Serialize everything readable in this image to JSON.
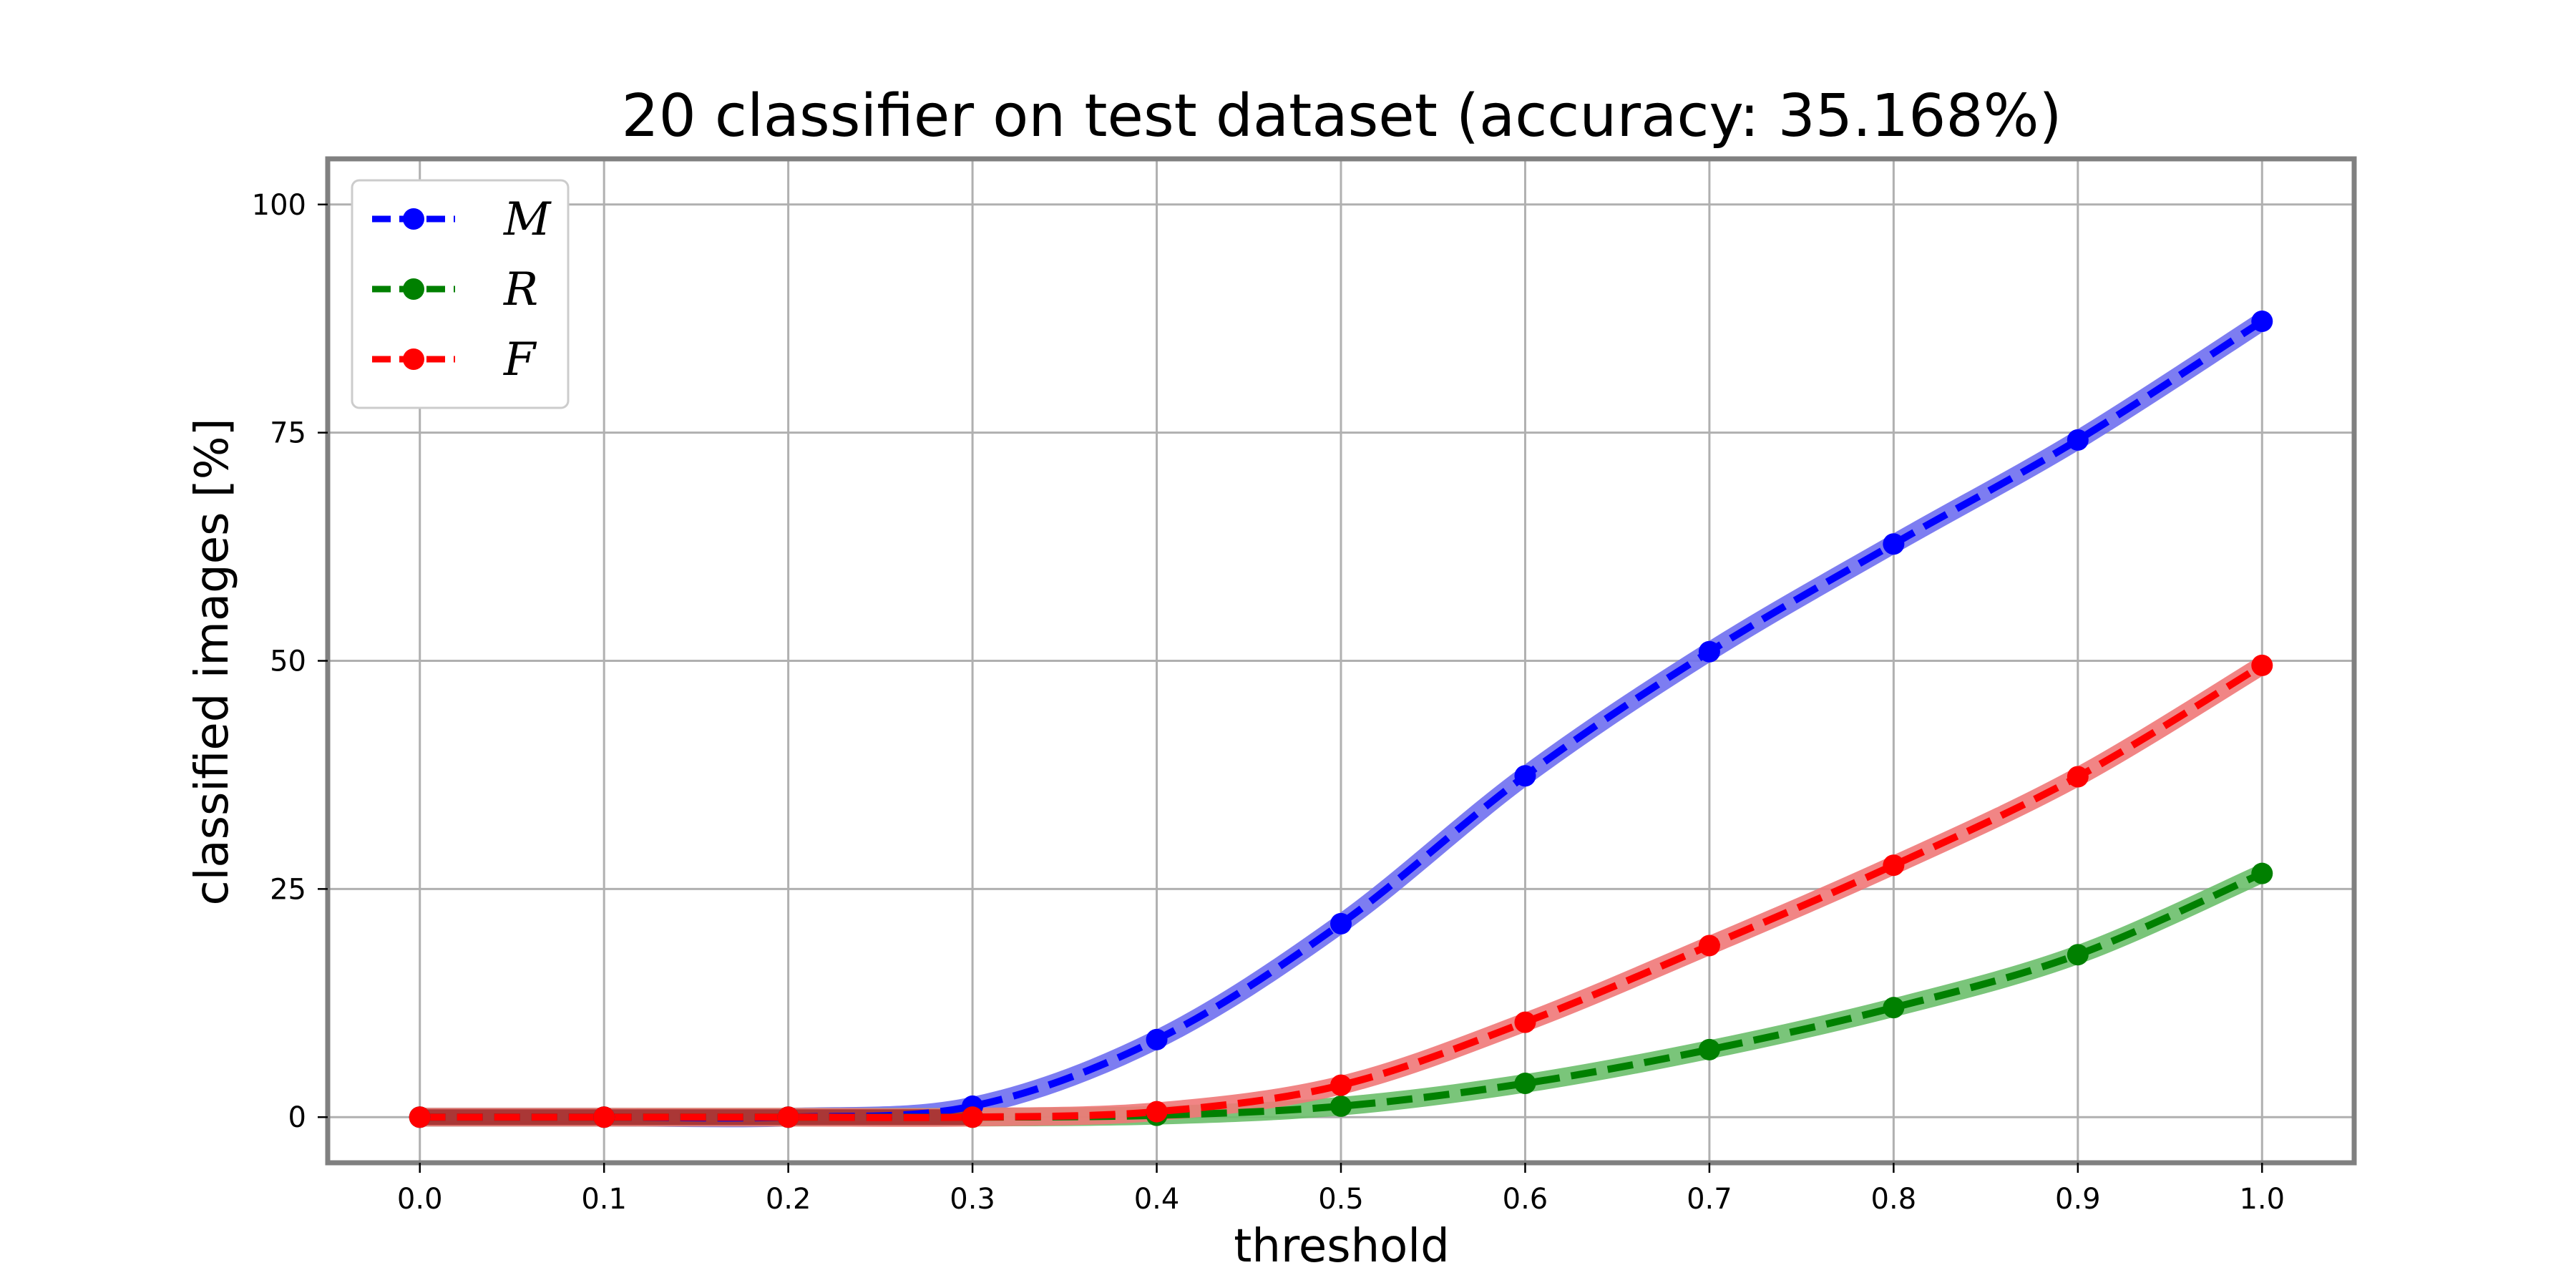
{
  "chart_data": {
    "type": "line",
    "title": "20 classifier on test dataset (accuracy: 35.168%)",
    "xlabel": "threshold",
    "ylabel": "classified images [%]",
    "x": [
      0.0,
      0.1,
      0.2,
      0.3,
      0.4,
      0.5,
      0.6,
      0.7,
      0.8,
      0.9,
      1.0
    ],
    "x_tick_labels": [
      "0.0",
      "0.1",
      "0.2",
      "0.3",
      "0.4",
      "0.5",
      "0.6",
      "0.7",
      "0.8",
      "0.9",
      "1.0"
    ],
    "y_ticks": [
      0,
      25,
      50,
      75,
      100
    ],
    "y_tick_labels": [
      "0",
      "25",
      "50",
      "75",
      "100"
    ],
    "xlim": [
      -0.05,
      1.05
    ],
    "ylim": [
      -5,
      105
    ],
    "grid": true,
    "legend_position": "top-left",
    "series": [
      {
        "name": "M",
        "color": "#0000ff",
        "band_color": "#6f6ff0",
        "line_style": "dashed",
        "marker": "circle",
        "values": [
          0,
          0,
          0,
          1.2,
          8.5,
          21.2,
          37.4,
          51.0,
          62.8,
          74.2,
          87.2
        ]
      },
      {
        "name": "R",
        "color": "#008000",
        "band_color": "#6cbf6c",
        "line_style": "dashed",
        "marker": "circle",
        "values": [
          0,
          0,
          0,
          0,
          0.2,
          1.2,
          3.7,
          7.4,
          12.0,
          17.8,
          26.7
        ]
      },
      {
        "name": "F",
        "color": "#ff0000",
        "band_color": "#f07878",
        "line_style": "dashed",
        "marker": "circle",
        "values": [
          0,
          0,
          0,
          0,
          0.6,
          3.5,
          10.4,
          18.8,
          27.6,
          37.3,
          49.5
        ]
      }
    ]
  }
}
